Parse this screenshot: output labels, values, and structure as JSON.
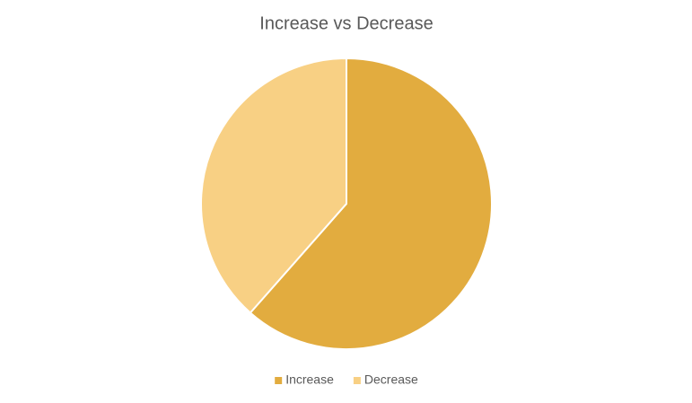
{
  "chart_data": {
    "type": "pie",
    "title": "Increase vs Decrease",
    "categories": [
      "Increase",
      "Decrease"
    ],
    "values": [
      61.5,
      38.5
    ],
    "colors": [
      "#e2ac3f",
      "#f8d084"
    ],
    "legend": "bottom"
  }
}
